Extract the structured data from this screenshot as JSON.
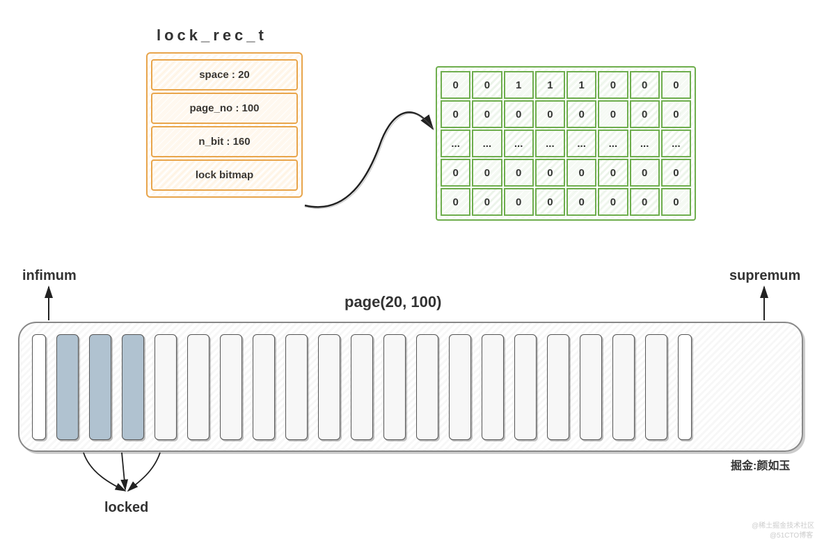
{
  "title": "lock_rec_t",
  "struct": {
    "border_color": "#e8a54c",
    "cells": [
      {
        "label": "space : 20"
      },
      {
        "label": "page_no : 100"
      },
      {
        "label": "n_bit : 160"
      },
      {
        "label": "lock bitmap"
      }
    ]
  },
  "bitmap": {
    "border_color": "#6fae4e",
    "rows": [
      [
        "0",
        "0",
        "1",
        "1",
        "1",
        "0",
        "0",
        "0"
      ],
      [
        "0",
        "0",
        "0",
        "0",
        "0",
        "0",
        "0",
        "0"
      ],
      [
        "...",
        "...",
        "...",
        "...",
        "...",
        "...",
        "...",
        "..."
      ],
      [
        "0",
        "0",
        "0",
        "0",
        "0",
        "0",
        "0",
        "0"
      ],
      [
        "0",
        "0",
        "0",
        "0",
        "0",
        "0",
        "0",
        "0"
      ]
    ]
  },
  "page_label": "page(20, 100)",
  "labels": {
    "infimum": "infimum",
    "supremum": "supremum",
    "locked": "locked",
    "credit": "掘金:颜如玉"
  },
  "page": {
    "records": [
      {
        "type": "thin"
      },
      {
        "type": "locked"
      },
      {
        "type": "locked"
      },
      {
        "type": "locked"
      },
      {
        "type": "normal"
      },
      {
        "type": "normal"
      },
      {
        "type": "normal"
      },
      {
        "type": "normal"
      },
      {
        "type": "normal"
      },
      {
        "type": "normal"
      },
      {
        "type": "normal"
      },
      {
        "type": "normal"
      },
      {
        "type": "normal"
      },
      {
        "type": "normal"
      },
      {
        "type": "normal"
      },
      {
        "type": "normal"
      },
      {
        "type": "normal"
      },
      {
        "type": "normal"
      },
      {
        "type": "normal"
      },
      {
        "type": "normal"
      },
      {
        "type": "thin"
      }
    ],
    "locked_indices": [
      1,
      2,
      3
    ]
  },
  "watermarks": {
    "w1": "@稀土掘金技术社区",
    "w2": "@51CTO博客"
  }
}
